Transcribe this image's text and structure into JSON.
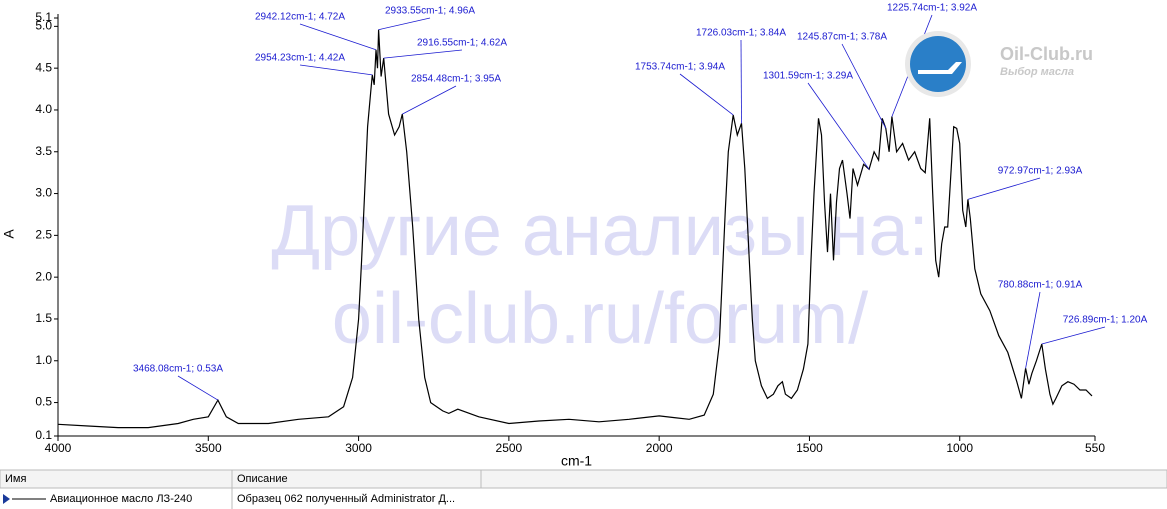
{
  "chart_data": {
    "type": "line",
    "xlabel": "cm-1",
    "ylabel": "A",
    "xlim": [
      4000,
      550
    ],
    "ylim": [
      0.1,
      5.1
    ],
    "xticks": [
      4000,
      3500,
      3000,
      2500,
      2000,
      1500,
      1000,
      550
    ],
    "yticks": [
      0.1,
      0.5,
      {
        "value": 1,
        "label": "1.0"
      },
      1.5,
      {
        "value": 2,
        "label": "2.0"
      },
      2.5,
      {
        "value": 3,
        "label": "3.0"
      },
      3.5,
      {
        "value": 4,
        "label": "4.0"
      },
      4.5,
      {
        "value": 5,
        "label": "5.0"
      },
      5.1
    ],
    "series": [
      {
        "name": "Авиационное масло ЛЗ-240",
        "color": "#000000",
        "x": [
          4000,
          3900,
          3800,
          3700,
          3600,
          3550,
          3500,
          3468.08,
          3440,
          3400,
          3300,
          3200,
          3100,
          3050,
          3020,
          3000,
          2990,
          2980,
          2970,
          2960,
          2954.23,
          2948,
          2942.12,
          2937,
          2933.55,
          2925,
          2916.55,
          2900,
          2880,
          2865,
          2854.48,
          2840,
          2820,
          2800,
          2780,
          2760,
          2740,
          2720,
          2700,
          2670,
          2600,
          2500,
          2400,
          2300,
          2200,
          2100,
          2000,
          1950,
          1900,
          1850,
          1820,
          1800,
          1790,
          1780,
          1770,
          1753.74,
          1740,
          1726.03,
          1715,
          1700,
          1690,
          1680,
          1660,
          1640,
          1620,
          1605,
          1590,
          1580,
          1560,
          1540,
          1520,
          1505,
          1495,
          1485,
          1470,
          1460,
          1450,
          1440,
          1430,
          1420,
          1410,
          1400,
          1390,
          1375,
          1365,
          1355,
          1340,
          1320,
          1301.59,
          1285,
          1270,
          1258,
          1245.87,
          1235,
          1225.74,
          1210,
          1190,
          1170,
          1150,
          1130,
          1115,
          1100,
          1090,
          1080,
          1070,
          1060,
          1050,
          1040,
          1030,
          1020,
          1010,
          1000,
          990,
          980,
          972.97,
          965,
          950,
          930,
          900,
          870,
          840,
          810,
          795,
          780.88,
          770,
          760,
          745,
          726.89,
          715,
          700,
          690,
          680,
          660,
          640,
          620,
          600,
          580,
          560
        ],
        "values": [
          0.24,
          0.22,
          0.2,
          0.2,
          0.25,
          0.3,
          0.33,
          0.53,
          0.33,
          0.25,
          0.25,
          0.3,
          0.33,
          0.45,
          0.8,
          1.5,
          2.2,
          3.0,
          3.8,
          4.2,
          4.42,
          4.3,
          4.72,
          4.5,
          4.96,
          4.4,
          4.62,
          3.95,
          3.7,
          3.8,
          3.95,
          3.5,
          2.6,
          1.5,
          0.8,
          0.5,
          0.45,
          0.4,
          0.37,
          0.42,
          0.33,
          0.25,
          0.28,
          0.3,
          0.27,
          0.3,
          0.34,
          0.32,
          0.3,
          0.35,
          0.6,
          1.2,
          2.0,
          2.8,
          3.5,
          3.94,
          3.7,
          3.84,
          3.3,
          2.2,
          1.5,
          1.0,
          0.7,
          0.55,
          0.6,
          0.7,
          0.75,
          0.6,
          0.55,
          0.65,
          0.9,
          1.2,
          2.2,
          3.0,
          3.9,
          3.7,
          2.9,
          2.3,
          3.0,
          2.2,
          2.9,
          3.3,
          3.4,
          3.0,
          2.7,
          3.3,
          3.1,
          3.35,
          3.29,
          3.5,
          3.4,
          3.9,
          3.78,
          3.5,
          3.92,
          3.5,
          3.6,
          3.4,
          3.5,
          3.3,
          3.25,
          3.9,
          3.0,
          2.2,
          2.0,
          2.4,
          2.6,
          2.6,
          3.2,
          3.8,
          3.78,
          3.6,
          2.8,
          2.6,
          2.93,
          2.7,
          2.1,
          1.8,
          1.6,
          1.3,
          1.1,
          0.75,
          0.55,
          0.91,
          0.72,
          0.85,
          1.0,
          1.2,
          0.9,
          0.6,
          0.48,
          0.55,
          0.7,
          0.75,
          0.72,
          0.65,
          0.65,
          0.58
        ]
      }
    ],
    "annotations": [
      {
        "label": "2942.12cm-1; 4.72A",
        "x": 2942.12,
        "y": 4.72
      },
      {
        "label": "2933.55cm-1; 4.96A",
        "x": 2933.55,
        "y": 4.96
      },
      {
        "label": "2916.55cm-1; 4.62A",
        "x": 2916.55,
        "y": 4.62
      },
      {
        "label": "2954.23cm-1; 4.42A",
        "x": 2954.23,
        "y": 4.42
      },
      {
        "label": "2854.48cm-1; 3.95A",
        "x": 2854.48,
        "y": 3.95
      },
      {
        "label": "3468.08cm-1; 0.53A",
        "x": 3468.08,
        "y": 0.53
      },
      {
        "label": "1726.03cm-1; 3.84A",
        "x": 1726.03,
        "y": 3.84
      },
      {
        "label": "1753.74cm-1; 3.94A",
        "x": 1753.74,
        "y": 3.94
      },
      {
        "label": "1245.87cm-1; 3.78A",
        "x": 1245.87,
        "y": 3.78
      },
      {
        "label": "1225.74cm-1; 3.92A",
        "x": 1225.74,
        "y": 3.92
      },
      {
        "label": "1301.59cm-1; 3.29A",
        "x": 1301.59,
        "y": 3.29
      },
      {
        "label": "972.97cm-1; 2.93A",
        "x": 972.97,
        "y": 2.93
      },
      {
        "label": "780.88cm-1; 0.91A",
        "x": 780.88,
        "y": 0.91
      },
      {
        "label": "726.89cm-1; 1.20A",
        "x": 726.89,
        "y": 1.2
      }
    ]
  },
  "watermark": [
    "Другие анализы на:",
    "oil-club.ru/forum/"
  ],
  "logo": {
    "title": "Oil-Club.ru",
    "subtitle": "Выбор масла"
  },
  "table": {
    "headers": [
      "Имя",
      "Описание"
    ],
    "rows": [
      [
        "Авиационное масло ЛЗ-240",
        "Образец 062 полученный Administrator Д..."
      ]
    ]
  }
}
